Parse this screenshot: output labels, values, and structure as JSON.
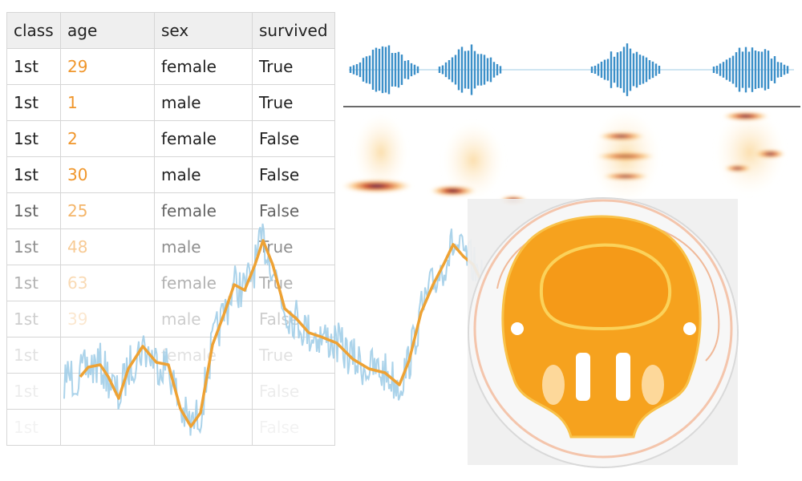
{
  "table": {
    "columns": [
      "class",
      "age",
      "sex",
      "survived"
    ],
    "rows": [
      [
        "1st",
        "29",
        "female",
        "True"
      ],
      [
        "1st",
        "1",
        "male",
        "True"
      ],
      [
        "1st",
        "2",
        "female",
        "False"
      ],
      [
        "1st",
        "30",
        "male",
        "False"
      ],
      [
        "1st",
        "25",
        "female",
        "False"
      ],
      [
        "1st",
        "48",
        "male",
        "True"
      ],
      [
        "1st",
        "63",
        "female",
        "True"
      ],
      [
        "1st",
        "39",
        "male",
        "False"
      ],
      [
        "1st",
        null,
        "female",
        "True"
      ],
      [
        "1st",
        null,
        null,
        "False"
      ],
      [
        "1st",
        null,
        null,
        "False"
      ]
    ]
  }
}
